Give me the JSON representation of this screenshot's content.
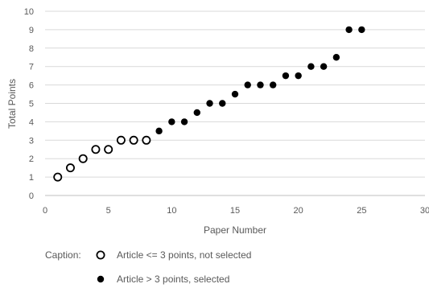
{
  "chart_data": {
    "type": "scatter",
    "title": "",
    "xlabel": "Paper Number",
    "ylabel": "Total Points",
    "xlim": [
      0,
      30
    ],
    "ylim": [
      0,
      10
    ],
    "xticks": [
      0,
      5,
      10,
      15,
      20,
      25,
      30
    ],
    "yticks": [
      0,
      1,
      2,
      3,
      4,
      5,
      6,
      7,
      8,
      9,
      10
    ],
    "xtick_labels": [
      "0",
      "5",
      "10",
      "15",
      "20",
      "25",
      "30"
    ],
    "ytick_labels": [
      "0",
      "1",
      "2",
      "3",
      "4",
      "5",
      "6",
      "7",
      "8",
      "9",
      "10"
    ],
    "grid": "horizontal",
    "legend_placement": "bottom-left",
    "series": [
      {
        "label": "Article <= 3 points, not selected",
        "marker": "open-circle",
        "color": "#000000",
        "x": [
          1,
          2,
          3,
          4,
          5,
          6,
          7,
          8
        ],
        "y": [
          1,
          1.5,
          2,
          2.5,
          2.5,
          3,
          3,
          3
        ]
      },
      {
        "label": "Article > 3 points, selected",
        "marker": "filled-circle",
        "color": "#000000",
        "x": [
          9,
          10,
          11,
          12,
          13,
          14,
          15,
          16,
          17,
          18,
          19,
          20,
          21,
          22,
          23,
          24,
          25
        ],
        "y": [
          3.5,
          4,
          4,
          4.5,
          5,
          5,
          5.5,
          6,
          6,
          6,
          6.5,
          6.5,
          7,
          7,
          7.5,
          9,
          9
        ]
      }
    ],
    "caption_prefix": "Caption:"
  },
  "colors": {
    "grid": "#d9d9d9",
    "axis": "#bfbfbf",
    "text": "#595959",
    "marker": "#000000"
  }
}
